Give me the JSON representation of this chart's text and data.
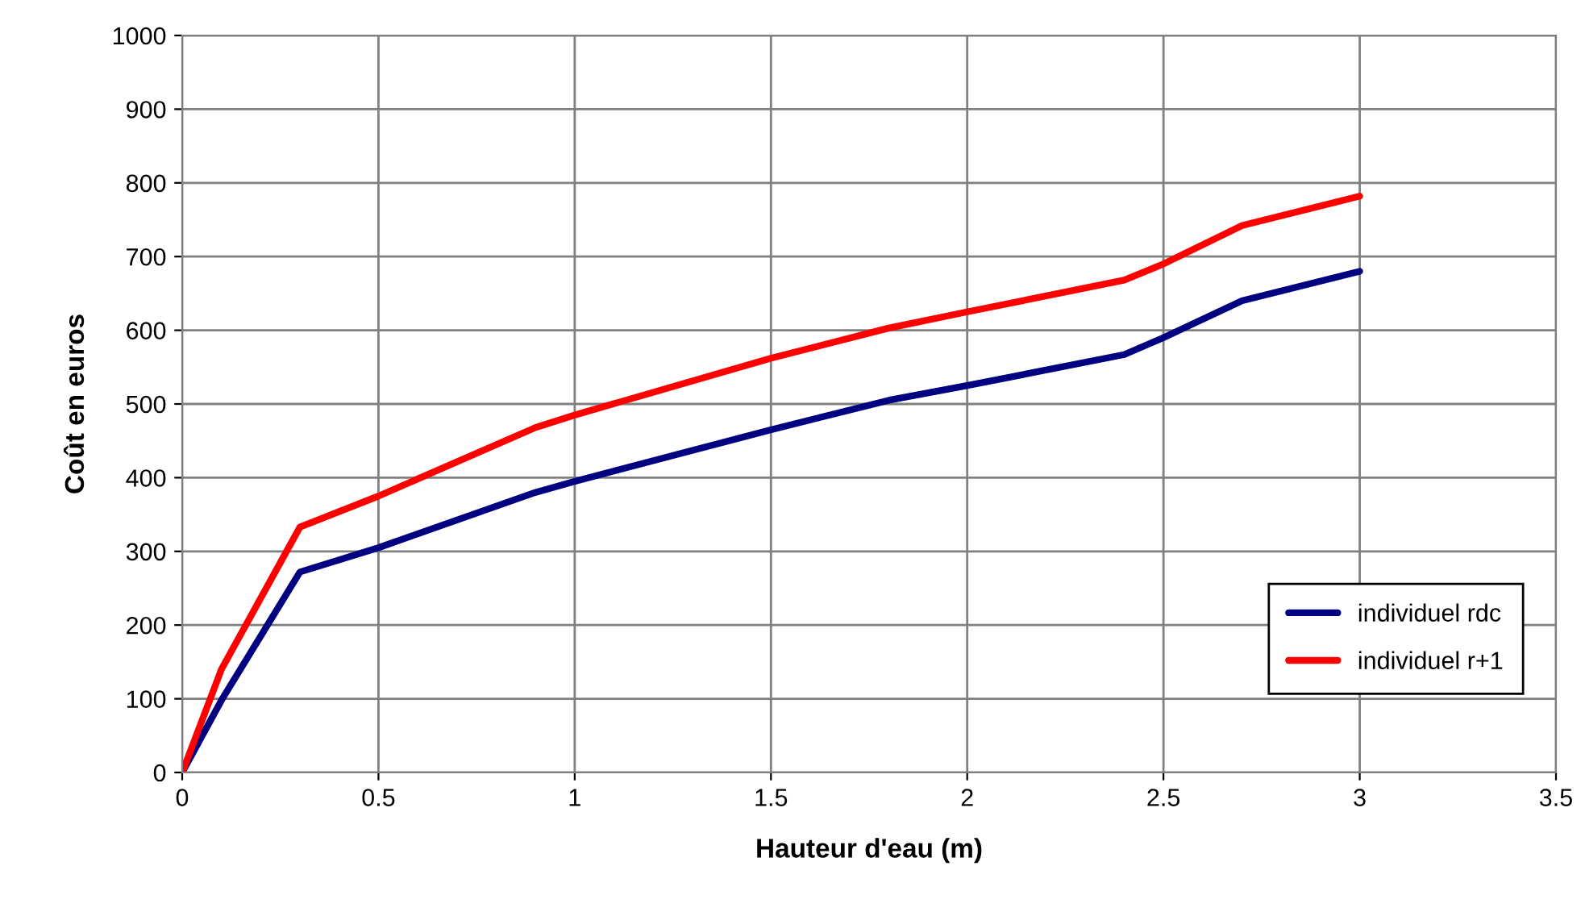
{
  "chart_data": {
    "type": "line",
    "xlabel": "Hauteur d'eau (m)",
    "ylabel": "Coût en euros",
    "xlim": [
      0,
      3.5
    ],
    "xticks": [
      0,
      0.5,
      1,
      1.5,
      2,
      2.5,
      3,
      3.5
    ],
    "ylim": [
      0,
      1000
    ],
    "yticks": [
      0,
      100,
      200,
      300,
      400,
      500,
      600,
      700,
      800,
      900,
      1000
    ],
    "grid": true,
    "legend": "bottom right",
    "marker": "none",
    "line_style": "solid",
    "series": [
      {
        "name": "individuel rdc",
        "color": "#000080",
        "x": [
          0,
          0.1,
          0.3,
          0.5,
          0.9,
          1.0,
          1.5,
          1.8,
          2.0,
          2.4,
          2.5,
          2.7,
          3.0
        ],
        "values": [
          0,
          98,
          272,
          305,
          380,
          395,
          465,
          505,
          525,
          567,
          590,
          640,
          680
        ]
      },
      {
        "name": "individuel r+1",
        "color": "#ff0000",
        "x": [
          0,
          0.1,
          0.3,
          0.5,
          0.9,
          1.0,
          1.5,
          1.8,
          2.0,
          2.4,
          2.5,
          2.7,
          3.0
        ],
        "values": [
          0,
          140,
          333,
          375,
          468,
          485,
          562,
          603,
          625,
          668,
          690,
          742,
          782
        ]
      }
    ]
  }
}
